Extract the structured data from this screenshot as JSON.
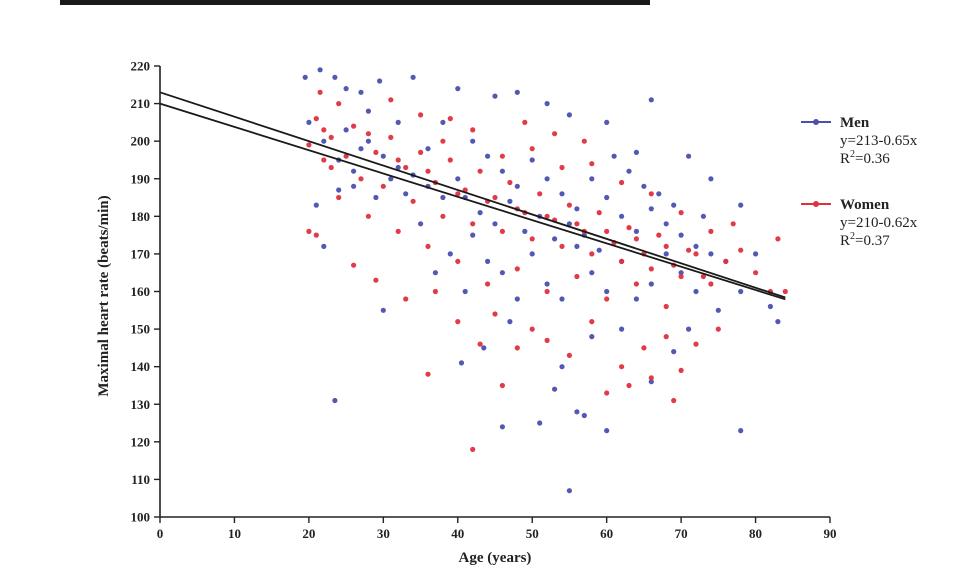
{
  "chart_data": {
    "type": "scatter",
    "xlabel": "Age (years)",
    "ylabel": "Maximal heart rate (beats/min)",
    "xlim": [
      0,
      90
    ],
    "ylim": [
      100,
      220
    ],
    "xticks": [
      0,
      10,
      20,
      30,
      40,
      50,
      60,
      70,
      80,
      90
    ],
    "yticks": [
      100,
      110,
      120,
      130,
      140,
      150,
      160,
      170,
      180,
      190,
      200,
      210,
      220
    ],
    "grid": false,
    "legend_position": "right",
    "series": [
      {
        "name": "Men",
        "color": "#4a4fb0",
        "equation": "y=213-0.65x",
        "r2_prefix": "R",
        "r2_sup": "2",
        "r2_value": "=0.36",
        "fit": {
          "intercept": 213,
          "slope": -0.65,
          "x_range": [
            0,
            84
          ]
        },
        "points": [
          [
            19.5,
            217
          ],
          [
            21.5,
            219
          ],
          [
            23.5,
            217
          ],
          [
            25,
            214
          ],
          [
            27,
            213
          ],
          [
            29.5,
            216
          ],
          [
            34,
            217
          ],
          [
            40,
            214
          ],
          [
            45,
            212
          ],
          [
            48,
            213
          ],
          [
            52,
            210
          ],
          [
            55,
            207
          ],
          [
            60,
            205
          ],
          [
            66,
            211
          ],
          [
            64,
            197
          ],
          [
            71,
            196
          ],
          [
            74,
            190
          ],
          [
            78,
            183
          ],
          [
            80,
            170
          ],
          [
            82,
            156
          ],
          [
            83,
            152
          ],
          [
            78,
            123
          ],
          [
            55,
            107
          ],
          [
            60,
            123
          ],
          [
            51,
            125
          ],
          [
            46,
            124
          ],
          [
            56,
            128
          ],
          [
            57,
            127
          ],
          [
            53,
            134
          ],
          [
            23.5,
            131
          ],
          [
            40.5,
            141
          ],
          [
            43.5,
            145
          ],
          [
            47,
            152
          ],
          [
            54,
            140
          ],
          [
            58,
            148
          ],
          [
            62,
            150
          ],
          [
            66,
            136
          ],
          [
            69,
            144
          ],
          [
            71,
            150
          ],
          [
            75,
            155
          ],
          [
            21,
            183
          ],
          [
            22,
            172
          ],
          [
            24,
            195
          ],
          [
            26,
            188
          ],
          [
            28,
            200
          ],
          [
            30,
            155
          ],
          [
            31,
            190
          ],
          [
            33,
            186
          ],
          [
            35,
            178
          ],
          [
            37,
            165
          ],
          [
            39,
            170
          ],
          [
            41,
            160
          ],
          [
            42,
            175
          ],
          [
            44,
            168
          ],
          [
            46,
            165
          ],
          [
            48,
            158
          ],
          [
            50,
            170
          ],
          [
            52,
            162
          ],
          [
            54,
            158
          ],
          [
            56,
            172
          ],
          [
            58,
            165
          ],
          [
            60,
            160
          ],
          [
            62,
            168
          ],
          [
            64,
            158
          ],
          [
            66,
            162
          ],
          [
            68,
            170
          ],
          [
            70,
            165
          ],
          [
            72,
            160
          ],
          [
            76,
            168
          ],
          [
            78,
            160
          ],
          [
            20,
            205
          ],
          [
            22,
            200
          ],
          [
            25,
            203
          ],
          [
            28,
            208
          ],
          [
            32,
            205
          ],
          [
            36,
            198
          ],
          [
            38,
            205
          ],
          [
            42,
            200
          ],
          [
            44,
            196
          ],
          [
            46,
            192
          ],
          [
            48,
            188
          ],
          [
            50,
            195
          ],
          [
            52,
            190
          ],
          [
            54,
            186
          ],
          [
            56,
            182
          ],
          [
            58,
            190
          ],
          [
            60,
            185
          ],
          [
            62,
            180
          ],
          [
            64,
            176
          ],
          [
            66,
            182
          ],
          [
            68,
            178
          ],
          [
            70,
            175
          ],
          [
            72,
            172
          ],
          [
            74,
            170
          ],
          [
            61,
            196
          ],
          [
            63,
            192
          ],
          [
            65,
            188
          ],
          [
            67,
            186
          ],
          [
            69,
            183
          ],
          [
            73,
            180
          ],
          [
            41,
            185
          ],
          [
            43,
            181
          ],
          [
            45,
            178
          ],
          [
            47,
            184
          ],
          [
            49,
            176
          ],
          [
            51,
            180
          ],
          [
            53,
            174
          ],
          [
            55,
            178
          ],
          [
            57,
            175
          ],
          [
            59,
            171
          ],
          [
            30,
            196
          ],
          [
            32,
            193
          ],
          [
            34,
            191
          ],
          [
            36,
            188
          ],
          [
            38,
            185
          ],
          [
            40,
            190
          ],
          [
            26,
            192
          ],
          [
            24,
            187
          ],
          [
            27,
            198
          ],
          [
            29,
            185
          ]
        ]
      },
      {
        "name": "Women",
        "color": "#e0303e",
        "equation": "y=210-0.62x",
        "r2_prefix": "R",
        "r2_sup": "2",
        "r2_value": "=0.37",
        "fit": {
          "intercept": 210,
          "slope": -0.62,
          "x_range": [
            0,
            84
          ]
        },
        "points": [
          [
            20,
            176
          ],
          [
            21,
            175
          ],
          [
            21.5,
            213
          ],
          [
            24,
            210
          ],
          [
            26,
            167
          ],
          [
            29,
            163
          ],
          [
            31,
            211
          ],
          [
            35,
            207
          ],
          [
            36,
            138
          ],
          [
            39,
            206
          ],
          [
            42,
            118
          ],
          [
            46,
            135
          ],
          [
            49,
            205
          ],
          [
            53,
            202
          ],
          [
            57,
            200
          ],
          [
            60,
            133
          ],
          [
            63,
            135
          ],
          [
            66,
            137
          ],
          [
            69,
            131
          ],
          [
            72,
            146
          ],
          [
            75,
            150
          ],
          [
            77,
            178
          ],
          [
            80,
            165
          ],
          [
            82,
            160
          ],
          [
            83,
            174
          ],
          [
            84,
            160
          ],
          [
            55,
            143
          ],
          [
            50,
            150
          ],
          [
            45,
            154
          ],
          [
            40,
            152
          ],
          [
            33,
            158
          ],
          [
            37,
            160
          ],
          [
            43,
            146
          ],
          [
            48,
            145
          ],
          [
            52,
            147
          ],
          [
            58,
            152
          ],
          [
            62,
            140
          ],
          [
            65,
            145
          ],
          [
            68,
            148
          ],
          [
            70,
            139
          ],
          [
            20,
            199
          ],
          [
            22,
            203
          ],
          [
            23,
            193
          ],
          [
            25,
            196
          ],
          [
            27,
            190
          ],
          [
            28,
            202
          ],
          [
            30,
            188
          ],
          [
            32,
            195
          ],
          [
            34,
            184
          ],
          [
            36,
            192
          ],
          [
            38,
            180
          ],
          [
            40,
            186
          ],
          [
            42,
            178
          ],
          [
            44,
            184
          ],
          [
            46,
            176
          ],
          [
            48,
            182
          ],
          [
            50,
            174
          ],
          [
            52,
            180
          ],
          [
            54,
            172
          ],
          [
            56,
            178
          ],
          [
            58,
            170
          ],
          [
            60,
            176
          ],
          [
            62,
            168
          ],
          [
            64,
            174
          ],
          [
            66,
            166
          ],
          [
            68,
            172
          ],
          [
            70,
            164
          ],
          [
            72,
            170
          ],
          [
            74,
            162
          ],
          [
            76,
            168
          ],
          [
            21,
            206
          ],
          [
            23,
            201
          ],
          [
            26,
            204
          ],
          [
            29,
            197
          ],
          [
            31,
            201
          ],
          [
            33,
            193
          ],
          [
            35,
            197
          ],
          [
            37,
            189
          ],
          [
            39,
            195
          ],
          [
            41,
            187
          ],
          [
            43,
            192
          ],
          [
            45,
            185
          ],
          [
            47,
            189
          ],
          [
            49,
            181
          ],
          [
            51,
            186
          ],
          [
            53,
            179
          ],
          [
            55,
            183
          ],
          [
            57,
            176
          ],
          [
            59,
            181
          ],
          [
            61,
            173
          ],
          [
            63,
            177
          ],
          [
            65,
            170
          ],
          [
            67,
            175
          ],
          [
            69,
            167
          ],
          [
            71,
            171
          ],
          [
            73,
            164
          ],
          [
            36,
            172
          ],
          [
            40,
            168
          ],
          [
            44,
            162
          ],
          [
            48,
            166
          ],
          [
            52,
            160
          ],
          [
            56,
            164
          ],
          [
            60,
            158
          ],
          [
            64,
            162
          ],
          [
            68,
            156
          ],
          [
            28,
            180
          ],
          [
            32,
            176
          ],
          [
            24,
            185
          ],
          [
            46,
            196
          ],
          [
            54,
            193
          ],
          [
            38,
            200
          ],
          [
            42,
            203
          ],
          [
            50,
            198
          ],
          [
            58,
            194
          ],
          [
            62,
            189
          ],
          [
            66,
            186
          ],
          [
            70,
            181
          ],
          [
            74,
            176
          ],
          [
            78,
            171
          ],
          [
            22,
            195
          ]
        ]
      }
    ]
  }
}
